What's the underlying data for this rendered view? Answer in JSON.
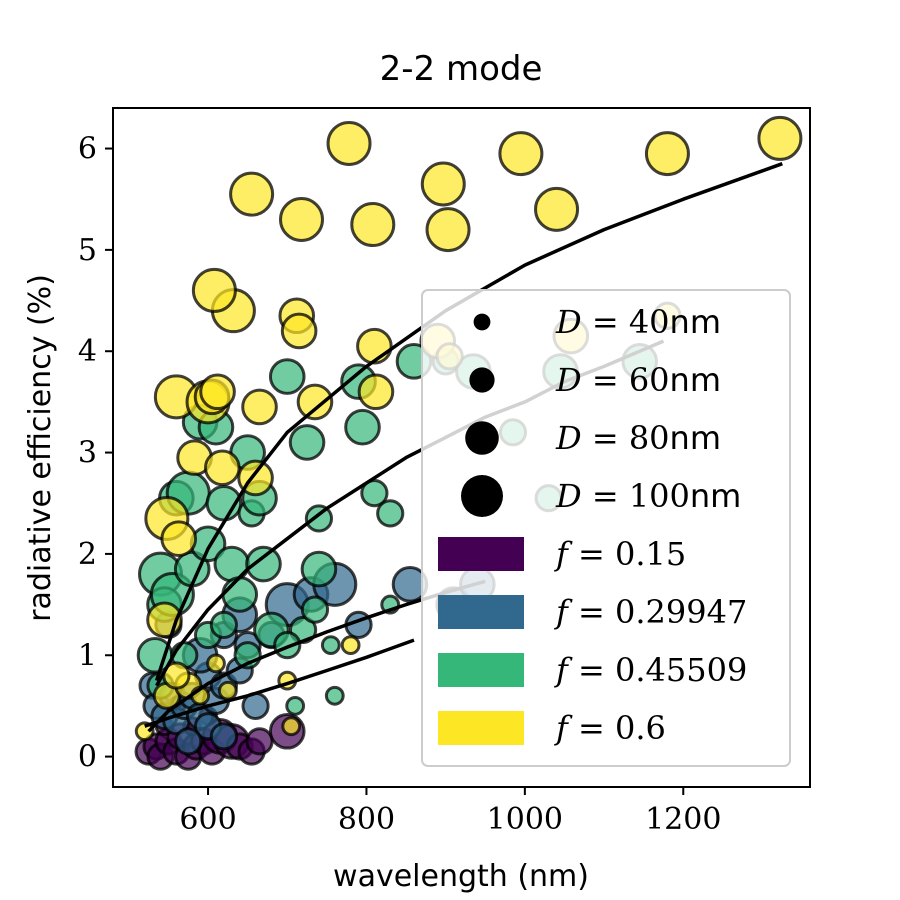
{
  "chart_data": {
    "type": "scatter",
    "title": "2-2 mode",
    "xlabel": "wavelength (nm)",
    "ylabel": "radiative efficiency (%)",
    "xlim": [
      480,
      1360
    ],
    "ylim": [
      -0.3,
      6.4
    ],
    "xticks": [
      600,
      800,
      1000,
      1200
    ],
    "yticks": [
      0,
      1,
      2,
      3,
      4,
      5,
      6
    ],
    "grid": false,
    "legend_position": "lower-right",
    "colors": {
      "0.15": "#440154",
      "0.29947": "#31688e",
      "0.45509": "#35b779",
      "0.6": "#fde725"
    },
    "size_legend": [
      {
        "label_var": "D",
        "label_value": "40",
        "label_unit": "nm",
        "diameter": 40
      },
      {
        "label_var": "D",
        "label_value": "60",
        "label_unit": "nm",
        "diameter": 60
      },
      {
        "label_var": "D",
        "label_value": "80",
        "label_unit": "nm",
        "diameter": 80
      },
      {
        "label_var": "D",
        "label_value": "100",
        "label_unit": "nm",
        "diameter": 100
      }
    ],
    "color_legend": [
      {
        "label_var": "f",
        "label_value": "0.15",
        "color": "#440154"
      },
      {
        "label_var": "f",
        "label_value": "0.29947",
        "color": "#31688e"
      },
      {
        "label_var": "f",
        "label_value": "0.45509",
        "color": "#35b779"
      },
      {
        "label_var": "f",
        "label_value": "0.6",
        "color": "#fde725"
      }
    ],
    "fit_curves": [
      {
        "f": "0.6",
        "x": [
          535,
          560,
          600,
          650,
          700,
          800,
          900,
          1000,
          1100,
          1200,
          1325
        ],
        "y": [
          0.75,
          1.35,
          2.05,
          2.7,
          3.2,
          3.85,
          4.4,
          4.85,
          5.2,
          5.5,
          5.85
        ]
      },
      {
        "f": "0.45509",
        "x": [
          535,
          560,
          600,
          650,
          700,
          750,
          800,
          850,
          900,
          950,
          1000,
          1050,
          1100,
          1175
        ],
        "y": [
          0.7,
          1.05,
          1.45,
          1.85,
          2.15,
          2.45,
          2.7,
          2.95,
          3.15,
          3.35,
          3.5,
          3.7,
          3.85,
          4.1
        ]
      },
      {
        "f": "0.29947",
        "x": [
          525,
          550,
          600,
          650,
          700,
          750,
          800,
          850,
          900,
          950
        ],
        "y": [
          0.25,
          0.45,
          0.72,
          0.92,
          1.08,
          1.23,
          1.37,
          1.5,
          1.62,
          1.73
        ]
      },
      {
        "f": "0.15",
        "x": [
          520,
          550,
          600,
          650,
          700,
          750,
          800,
          860
        ],
        "y": [
          0.3,
          0.38,
          0.5,
          0.6,
          0.72,
          0.85,
          0.98,
          1.15
        ]
      }
    ],
    "series": [
      {
        "f": "0.6",
        "points": [
          [
            548,
            2.35,
            100
          ],
          [
            563,
            2.15,
            80
          ],
          [
            545,
            1.35,
            80
          ],
          [
            548,
            0.6,
            60
          ],
          [
            575,
            0.7,
            60
          ],
          [
            560,
            0.8,
            60
          ],
          [
            560,
            3.55,
            100
          ],
          [
            583,
            2.95,
            80
          ],
          [
            600,
            3.5,
            100
          ],
          [
            605,
            3.55,
            80
          ],
          [
            612,
            3.6,
            80
          ],
          [
            618,
            2.85,
            80
          ],
          [
            632,
            4.4,
            100
          ],
          [
            660,
            2.75,
            80
          ],
          [
            665,
            3.45,
            80
          ],
          [
            712,
            4.35,
            80
          ],
          [
            715,
            4.2,
            80
          ],
          [
            735,
            3.5,
            80
          ],
          [
            655,
            5.55,
            100
          ],
          [
            718,
            5.3,
            100
          ],
          [
            778,
            6.05,
            100
          ],
          [
            808,
            5.25,
            100
          ],
          [
            810,
            4.05,
            80
          ],
          [
            812,
            3.6,
            80
          ],
          [
            897,
            5.65,
            100
          ],
          [
            903,
            5.2,
            100
          ],
          [
            890,
            4.1,
            80
          ],
          [
            995,
            5.95,
            100
          ],
          [
            1040,
            5.4,
            100
          ],
          [
            1180,
            5.95,
            100
          ],
          [
            1322,
            6.1,
            100
          ],
          [
            1180,
            4.35,
            60
          ],
          [
            1058,
            4.15,
            80
          ],
          [
            608,
            4.6,
            100
          ],
          [
            905,
            3.95,
            60
          ],
          [
            610,
            0.92,
            40
          ],
          [
            625,
            0.65,
            40
          ],
          [
            590,
            0.6,
            40
          ],
          [
            700,
            0.75,
            40
          ],
          [
            705,
            0.3,
            40
          ],
          [
            520,
            0.25,
            40
          ],
          [
            780,
            1.1,
            40
          ]
        ]
      },
      {
        "f": "0.45509",
        "points": [
          [
            533,
            1.0,
            80
          ],
          [
            540,
            1.8,
            100
          ],
          [
            545,
            1.5,
            80
          ],
          [
            555,
            1.6,
            100
          ],
          [
            560,
            2.55,
            80
          ],
          [
            575,
            2.6,
            100
          ],
          [
            580,
            1.85,
            80
          ],
          [
            600,
            2.1,
            80
          ],
          [
            590,
            3.3,
            80
          ],
          [
            610,
            3.25,
            80
          ],
          [
            620,
            2.5,
            80
          ],
          [
            630,
            1.9,
            80
          ],
          [
            640,
            1.6,
            80
          ],
          [
            650,
            3.0,
            80
          ],
          [
            655,
            2.4,
            60
          ],
          [
            665,
            2.55,
            80
          ],
          [
            670,
            1.9,
            80
          ],
          [
            680,
            1.25,
            80
          ],
          [
            700,
            3.75,
            80
          ],
          [
            725,
            3.1,
            80
          ],
          [
            740,
            2.35,
            60
          ],
          [
            740,
            1.85,
            80
          ],
          [
            720,
            1.25,
            60
          ],
          [
            735,
            1.45,
            60
          ],
          [
            755,
            1.1,
            40
          ],
          [
            790,
            3.7,
            80
          ],
          [
            795,
            3.25,
            80
          ],
          [
            810,
            2.6,
            60
          ],
          [
            830,
            2.4,
            60
          ],
          [
            860,
            3.9,
            80
          ],
          [
            900,
            3.9,
            60
          ],
          [
            935,
            3.8,
            80
          ],
          [
            985,
            3.2,
            60
          ],
          [
            1030,
            2.55,
            60
          ],
          [
            1045,
            3.8,
            80
          ],
          [
            1145,
            3.9,
            80
          ],
          [
            570,
            1.0,
            60
          ],
          [
            600,
            1.2,
            60
          ],
          [
            620,
            1.3,
            60
          ],
          [
            650,
            1.0,
            60
          ],
          [
            700,
            1.1,
            60
          ],
          [
            760,
            0.6,
            40
          ],
          [
            830,
            1.5,
            40
          ],
          [
            540,
            0.7,
            60
          ],
          [
            710,
            0.5,
            40
          ]
        ]
      },
      {
        "f": "0.29947",
        "points": [
          [
            530,
            0.7,
            60
          ],
          [
            535,
            0.5,
            60
          ],
          [
            545,
            0.4,
            60
          ],
          [
            555,
            0.6,
            60
          ],
          [
            560,
            0.35,
            60
          ],
          [
            570,
            0.5,
            60
          ],
          [
            580,
            0.6,
            60
          ],
          [
            590,
            0.4,
            60
          ],
          [
            600,
            0.8,
            60
          ],
          [
            610,
            0.55,
            60
          ],
          [
            620,
            0.7,
            60
          ],
          [
            590,
            1.0,
            80
          ],
          [
            620,
            1.2,
            60
          ],
          [
            650,
            1.1,
            60
          ],
          [
            680,
            1.2,
            60
          ],
          [
            700,
            1.5,
            100
          ],
          [
            730,
            1.6,
            80
          ],
          [
            760,
            1.7,
            100
          ],
          [
            790,
            1.3,
            60
          ],
          [
            855,
            1.7,
            80
          ],
          [
            910,
            1.5,
            80
          ],
          [
            940,
            1.7,
            80
          ],
          [
            550,
            1.3,
            60
          ],
          [
            640,
            0.85,
            60
          ],
          [
            660,
            0.5,
            60
          ],
          [
            600,
            0.3,
            60
          ],
          [
            620,
            0.2,
            60
          ],
          [
            575,
            0.15,
            60
          ],
          [
            640,
            1.4,
            80
          ]
        ]
      },
      {
        "f": "0.15",
        "points": [
          [
            525,
            0.05,
            60
          ],
          [
            535,
            0.1,
            60
          ],
          [
            540,
            0.0,
            60
          ],
          [
            550,
            0.15,
            60
          ],
          [
            560,
            0.05,
            60
          ],
          [
            565,
            0.2,
            60
          ],
          [
            575,
            0.0,
            60
          ],
          [
            585,
            0.1,
            60
          ],
          [
            595,
            0.15,
            60
          ],
          [
            605,
            0.05,
            60
          ],
          [
            615,
            0.2,
            80
          ],
          [
            630,
            0.15,
            80
          ],
          [
            640,
            0.1,
            60
          ],
          [
            655,
            0.05,
            60
          ],
          [
            665,
            0.15,
            60
          ],
          [
            700,
            0.25,
            80
          ],
          [
            545,
            0.3,
            40
          ],
          [
            580,
            0.3,
            40
          ],
          [
            600,
            0.4,
            40
          ],
          [
            560,
            0.5,
            40
          ]
        ]
      }
    ]
  }
}
